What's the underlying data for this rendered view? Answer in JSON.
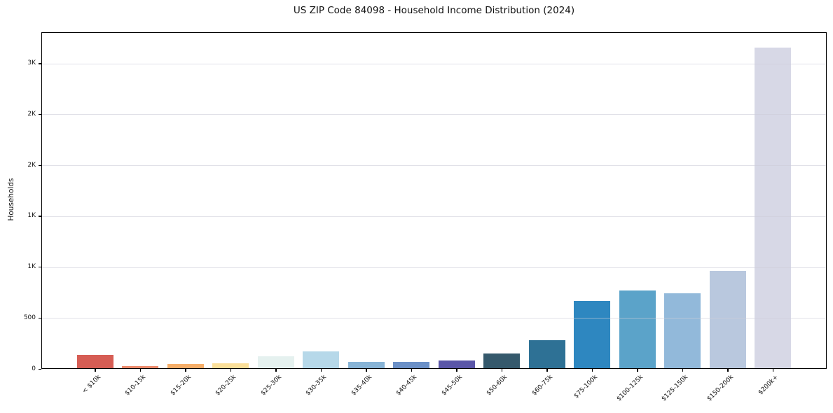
{
  "chart_data": {
    "type": "bar",
    "title": "US ZIP Code 84098 - Household Income Distribution (2024)",
    "xlabel": "",
    "ylabel": "Households",
    "categories": [
      "< $10k",
      "$10-15k",
      "$15-20k",
      "$20-25k",
      "$25-30k",
      "$30-35k",
      "$35-40k",
      "$40-45k",
      "$45-50k",
      "$50-60k",
      "$60-75k",
      "$75-100k",
      "$100-125k",
      "$125-150k",
      "$150-200k",
      "$200k+"
    ],
    "values": [
      140,
      30,
      45,
      55,
      125,
      170,
      70,
      70,
      80,
      150,
      285,
      670,
      770,
      745,
      965,
      3160
    ],
    "bar_colors": [
      "#d65d54",
      "#ec8a6c",
      "#f6ae69",
      "#fbdf99",
      "#e5f1ef",
      "#b6d8e9",
      "#88b4d6",
      "#6b90c7",
      "#5a56a8",
      "#35596c",
      "#2e7195",
      "#2e87c0",
      "#5ba3c9",
      "#92b9da",
      "#b9c8de",
      "#d7d8e6"
    ],
    "ylim": [
      0,
      3308
    ],
    "yticks": [
      {
        "value": 0,
        "label": "0"
      },
      {
        "value": 500,
        "label": "500"
      },
      {
        "value": 1000,
        "label": "1K"
      },
      {
        "value": 1500,
        "label": "1K"
      },
      {
        "value": 2000,
        "label": "2K"
      },
      {
        "value": 2500,
        "label": "2K"
      },
      {
        "value": 3000,
        "label": "3K"
      }
    ],
    "grid": "horizontal-y",
    "legend_position": "none",
    "bar_width_fraction": 0.8,
    "x_tick_rotation_deg": 45
  }
}
